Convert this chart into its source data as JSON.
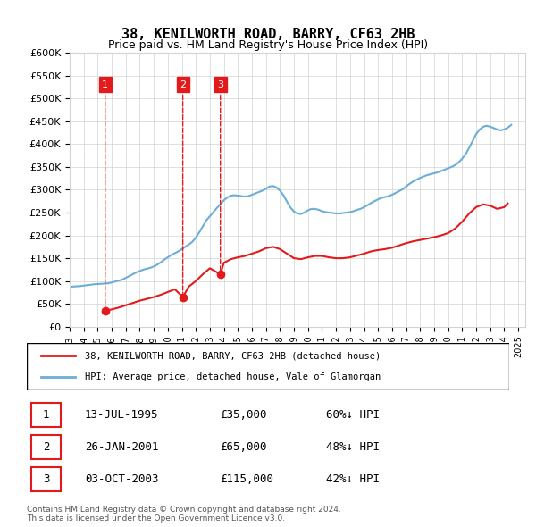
{
  "title": "38, KENILWORTH ROAD, BARRY, CF63 2HB",
  "subtitle": "Price paid vs. HM Land Registry's House Price Index (HPI)",
  "ylabel_ticks": [
    "£0",
    "£50K",
    "£100K",
    "£150K",
    "£200K",
    "£250K",
    "£300K",
    "£350K",
    "£400K",
    "£450K",
    "£500K",
    "£550K",
    "£600K"
  ],
  "ylim": [
    0,
    600000
  ],
  "xlim_start": 1993.0,
  "xlim_end": 2025.5,
  "hpi_line_color": "#6baed6",
  "price_line_color": "#e31a1c",
  "marker_color": "#e31a1c",
  "marker_border_color": "#e31a1c",
  "transaction_marker_color": "#e31a1c",
  "legend_label_red": "38, KENILWORTH ROAD, BARRY, CF63 2HB (detached house)",
  "legend_label_blue": "HPI: Average price, detached house, Vale of Glamorgan",
  "transactions": [
    {
      "num": 1,
      "date": "13-JUL-1995",
      "price": 35000,
      "pct": "60%↓ HPI",
      "year": 1995.53
    },
    {
      "num": 2,
      "date": "26-JAN-2001",
      "price": 65000,
      "pct": "48%↓ HPI",
      "year": 2001.07
    },
    {
      "num": 3,
      "date": "03-OCT-2003",
      "price": 115000,
      "pct": "42%↓ HPI",
      "year": 2003.75
    }
  ],
  "footer_line1": "Contains HM Land Registry data © Crown copyright and database right 2024.",
  "footer_line2": "This data is licensed under the Open Government Licence v3.0.",
  "hpi_data": {
    "years": [
      1993.0,
      1993.25,
      1993.5,
      1993.75,
      1994.0,
      1994.25,
      1994.5,
      1994.75,
      1995.0,
      1995.25,
      1995.5,
      1995.75,
      1996.0,
      1996.25,
      1996.5,
      1996.75,
      1997.0,
      1997.25,
      1997.5,
      1997.75,
      1998.0,
      1998.25,
      1998.5,
      1998.75,
      1999.0,
      1999.25,
      1999.5,
      1999.75,
      2000.0,
      2000.25,
      2000.5,
      2000.75,
      2001.0,
      2001.25,
      2001.5,
      2001.75,
      2002.0,
      2002.25,
      2002.5,
      2002.75,
      2003.0,
      2003.25,
      2003.5,
      2003.75,
      2004.0,
      2004.25,
      2004.5,
      2004.75,
      2005.0,
      2005.25,
      2005.5,
      2005.75,
      2006.0,
      2006.25,
      2006.5,
      2006.75,
      2007.0,
      2007.25,
      2007.5,
      2007.75,
      2008.0,
      2008.25,
      2008.5,
      2008.75,
      2009.0,
      2009.25,
      2009.5,
      2009.75,
      2010.0,
      2010.25,
      2010.5,
      2010.75,
      2011.0,
      2011.25,
      2011.5,
      2011.75,
      2012.0,
      2012.25,
      2012.5,
      2012.75,
      2013.0,
      2013.25,
      2013.5,
      2013.75,
      2014.0,
      2014.25,
      2014.5,
      2014.75,
      2015.0,
      2015.25,
      2015.5,
      2015.75,
      2016.0,
      2016.25,
      2016.5,
      2016.75,
      2017.0,
      2017.25,
      2017.5,
      2017.75,
      2018.0,
      2018.25,
      2018.5,
      2018.75,
      2019.0,
      2019.25,
      2019.5,
      2019.75,
      2020.0,
      2020.25,
      2020.5,
      2020.75,
      2021.0,
      2021.25,
      2021.5,
      2021.75,
      2022.0,
      2022.25,
      2022.5,
      2022.75,
      2023.0,
      2023.25,
      2023.5,
      2023.75,
      2024.0,
      2024.25,
      2024.5
    ],
    "values": [
      87000,
      88000,
      88500,
      89000,
      90000,
      91000,
      92000,
      93000,
      93500,
      94000,
      94500,
      95000,
      97000,
      99000,
      101000,
      103000,
      107000,
      111000,
      115000,
      119000,
      122000,
      125000,
      127000,
      129000,
      132000,
      136000,
      141000,
      147000,
      152000,
      157000,
      161000,
      165000,
      170000,
      175000,
      180000,
      186000,
      195000,
      207000,
      220000,
      233000,
      242000,
      251000,
      260000,
      268000,
      277000,
      283000,
      287000,
      288000,
      287000,
      286000,
      285000,
      286000,
      289000,
      292000,
      295000,
      298000,
      302000,
      307000,
      308000,
      305000,
      298000,
      288000,
      274000,
      261000,
      252000,
      248000,
      247000,
      250000,
      255000,
      258000,
      258000,
      256000,
      253000,
      251000,
      250000,
      249000,
      248000,
      248000,
      249000,
      250000,
      251000,
      253000,
      256000,
      258000,
      262000,
      266000,
      271000,
      275000,
      279000,
      282000,
      284000,
      286000,
      289000,
      293000,
      297000,
      301000,
      307000,
      313000,
      318000,
      322000,
      326000,
      329000,
      332000,
      334000,
      336000,
      338000,
      341000,
      344000,
      347000,
      350000,
      354000,
      360000,
      368000,
      378000,
      392000,
      407000,
      422000,
      432000,
      438000,
      440000,
      438000,
      435000,
      432000,
      430000,
      432000,
      436000,
      442000
    ]
  },
  "price_data": {
    "years": [
      1995.53,
      1996.0,
      1996.5,
      1997.0,
      1997.5,
      1998.0,
      1998.5,
      1999.0,
      1999.5,
      2000.0,
      2000.5,
      2001.07,
      2001.5,
      2002.0,
      2002.5,
      2003.0,
      2003.75,
      2004.0,
      2004.5,
      2005.0,
      2005.5,
      2006.0,
      2006.5,
      2007.0,
      2007.5,
      2008.0,
      2008.5,
      2009.0,
      2009.5,
      2010.0,
      2010.5,
      2011.0,
      2011.5,
      2012.0,
      2012.5,
      2013.0,
      2013.5,
      2014.0,
      2014.5,
      2015.0,
      2015.5,
      2016.0,
      2016.5,
      2017.0,
      2017.5,
      2018.0,
      2018.5,
      2019.0,
      2019.5,
      2020.0,
      2020.5,
      2021.0,
      2021.5,
      2022.0,
      2022.5,
      2023.0,
      2023.5,
      2024.0,
      2024.25
    ],
    "values": [
      35000,
      38000,
      42000,
      47000,
      52000,
      57000,
      61000,
      65000,
      70000,
      76000,
      82000,
      65000,
      88000,
      100000,
      115000,
      128000,
      115000,
      140000,
      148000,
      152000,
      155000,
      160000,
      165000,
      172000,
      175000,
      170000,
      160000,
      150000,
      148000,
      152000,
      155000,
      155000,
      152000,
      150000,
      150000,
      152000,
      156000,
      160000,
      165000,
      168000,
      170000,
      173000,
      178000,
      183000,
      187000,
      190000,
      193000,
      196000,
      200000,
      205000,
      215000,
      230000,
      248000,
      262000,
      268000,
      265000,
      258000,
      262000,
      270000
    ]
  }
}
